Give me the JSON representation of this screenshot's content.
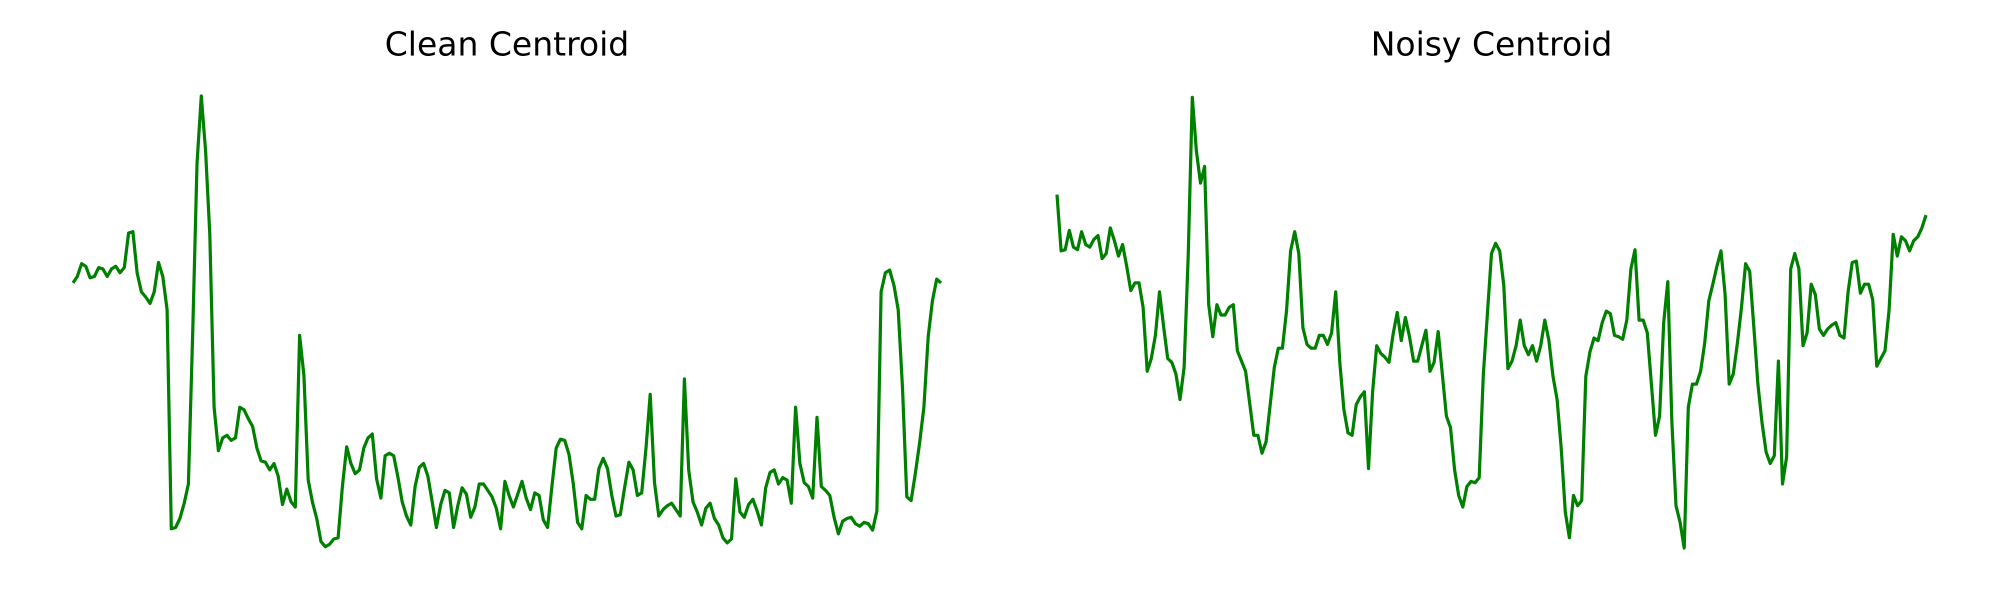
{
  "chart_data": [
    {
      "type": "line",
      "title": "Clean Centroid",
      "color": "#008000",
      "values": [
        209,
        214,
        224,
        222,
        213,
        214,
        221,
        220,
        214,
        220,
        222,
        217,
        221,
        248,
        249,
        217,
        202,
        198,
        193,
        202,
        225,
        214,
        188,
        17,
        18,
        25,
        37,
        52,
        170,
        302,
        355,
        312,
        247,
        112,
        78,
        88,
        90,
        86,
        88,
        112,
        110,
        103,
        97,
        80,
        70,
        69,
        63,
        68,
        58,
        36,
        48,
        38,
        34,
        168,
        137,
        55,
        38,
        25,
        7,
        3,
        5,
        9,
        10,
        50,
        81,
        68,
        60,
        63,
        80,
        88,
        91,
        56,
        41,
        74,
        76,
        74,
        57,
        38,
        27,
        20,
        50,
        65,
        68,
        58,
        38,
        18,
        36,
        47,
        45,
        18,
        35,
        49,
        44,
        26,
        34,
        52,
        52,
        47,
        42,
        33,
        17,
        54,
        43,
        34,
        44,
        54,
        41,
        32,
        45,
        43,
        24,
        18,
        50,
        80,
        87,
        86,
        75,
        52,
        22,
        17,
        43,
        40,
        40,
        64,
        72,
        64,
        43,
        27,
        28,
        49,
        69,
        63,
        43,
        45,
        80,
        122,
        53,
        27,
        32,
        35,
        37,
        32,
        27,
        134,
        63,
        38,
        30,
        20,
        33,
        37,
        25,
        20,
        10,
        6,
        9,
        56,
        30,
        26,
        36,
        40,
        31,
        20,
        49,
        61,
        63,
        52,
        57,
        55,
        37,
        112,
        68,
        53,
        50,
        41,
        104,
        50,
        47,
        43,
        26,
        13,
        23,
        25,
        26,
        21,
        19,
        22,
        21,
        16,
        31,
        202,
        217,
        219,
        207,
        188,
        127,
        42,
        39,
        60,
        84,
        112,
        167,
        195,
        212,
        209
      ]
    },
    {
      "type": "line",
      "title": "Noisy Centroid",
      "color": "#008000",
      "values": [
        278,
        234,
        235,
        250,
        237,
        235,
        249,
        239,
        237,
        243,
        246,
        228,
        232,
        252,
        242,
        230,
        239,
        222,
        203,
        209,
        209,
        190,
        140,
        150,
        168,
        202,
        175,
        150,
        147,
        138,
        118,
        143,
        230,
        354,
        312,
        287,
        300,
        192,
        167,
        192,
        184,
        184,
        190,
        192,
        156,
        148,
        140,
        115,
        90,
        90,
        76,
        85,
        114,
        143,
        158,
        158,
        187,
        234,
        249,
        232,
        174,
        161,
        158,
        158,
        168,
        168,
        161,
        170,
        202,
        147,
        110,
        92,
        90,
        114,
        120,
        124,
        64,
        124,
        160,
        154,
        151,
        147,
        169,
        186,
        164,
        182,
        167,
        148,
        148,
        160,
        172,
        140,
        147,
        171,
        138,
        105,
        96,
        63,
        43,
        34,
        50,
        54,
        53,
        57,
        137,
        185,
        232,
        240,
        234,
        207,
        142,
        148,
        160,
        180,
        160,
        153,
        160,
        148,
        160,
        180,
        164,
        136,
        118,
        80,
        30,
        10,
        43,
        35,
        39,
        136,
        155,
        166,
        164,
        178,
        187,
        185,
        168,
        167,
        165,
        180,
        220,
        235,
        180,
        180,
        170,
        130,
        90,
        105,
        178,
        210,
        100,
        35,
        22,
        2,
        112,
        130,
        130,
        140,
        162,
        195,
        208,
        222,
        234,
        200,
        130,
        138,
        162,
        190,
        224,
        218,
        175,
        130,
        100,
        77,
        68,
        74,
        148,
        52,
        73,
        220,
        232,
        220,
        160,
        170,
        208,
        200,
        173,
        168,
        173,
        176,
        178,
        168,
        166,
        202,
        225,
        226,
        201,
        208,
        208,
        196,
        144,
        150,
        156,
        188,
        247,
        230,
        245,
        242,
        234,
        242,
        245,
        252,
        262
      ]
    }
  ]
}
